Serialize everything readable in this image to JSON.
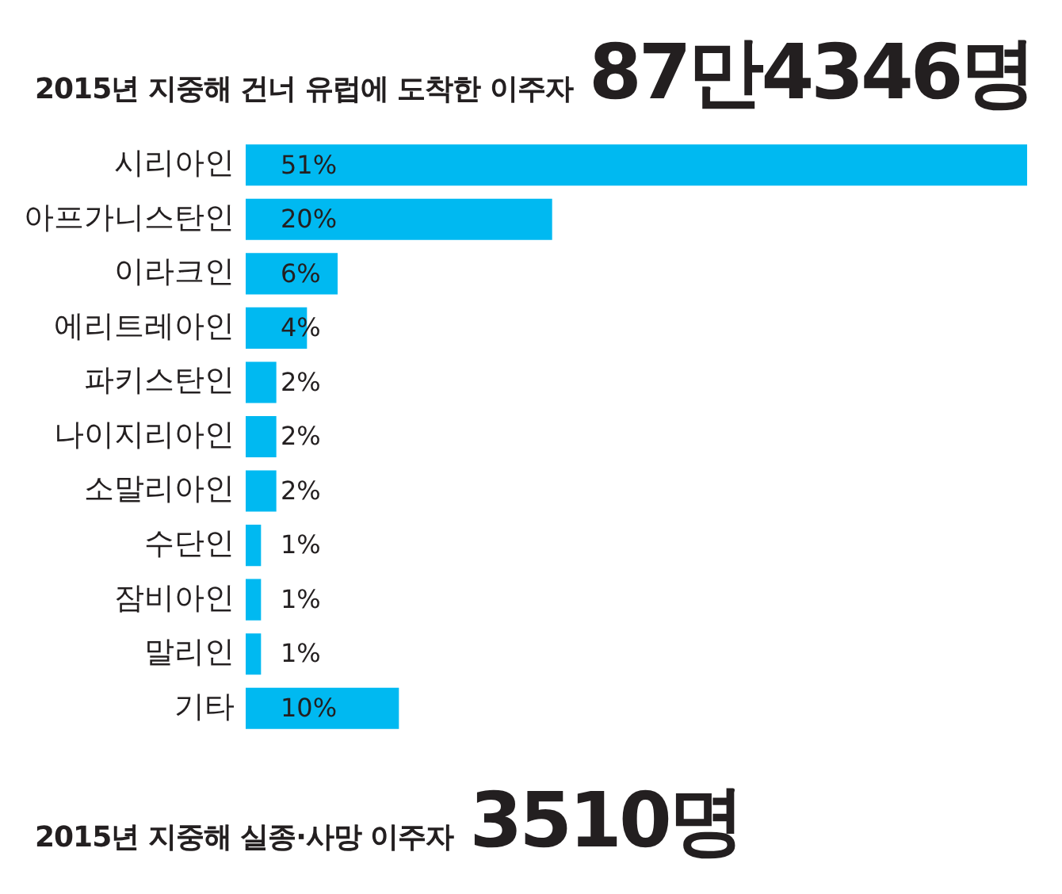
{
  "chart_data": {
    "type": "bar",
    "orientation": "horizontal",
    "title": "2015년 지중해 건너 유럽에 도착한 이주자 87만4346명",
    "categories": [
      "시리아인",
      "아프가니스탄인",
      "이라크인",
      "에리트레아인",
      "파키스탄인",
      "나이지리아인",
      "소말리아인",
      "수단인",
      "잠비아인",
      "말리인",
      "기타"
    ],
    "values": [
      51,
      20,
      6,
      4,
      2,
      2,
      2,
      1,
      1,
      1,
      10
    ],
    "value_labels": [
      "51%",
      "20%",
      "6%",
      "4%",
      "2%",
      "2%",
      "2%",
      "1%",
      "1%",
      "1%",
      "10%"
    ],
    "color": "#00b9f1",
    "xlim": [
      0,
      51
    ],
    "tick_labels": "y",
    "annotations": [
      "2015년 지중해 실종·사망 이주자 3510명"
    ]
  }
}
